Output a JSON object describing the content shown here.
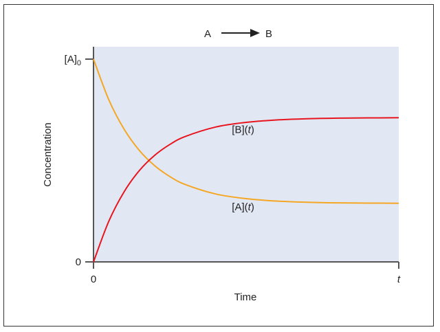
{
  "chart_data": {
    "type": "line",
    "title": {
      "reactant": "A",
      "product": "B"
    },
    "xlabel": "Time",
    "ylabel": "Concentration",
    "xlim": [
      0,
      1
    ],
    "ylim": [
      0,
      1
    ],
    "x_ticks": [
      {
        "value": 0,
        "label": "0"
      },
      {
        "value": 1,
        "label": "t"
      }
    ],
    "y_ticks": [
      {
        "value": 0,
        "label": "0"
      },
      {
        "value": 1,
        "label": "[A]",
        "subscript": "0"
      }
    ],
    "grid": false,
    "background": "#e1e8f4",
    "series": [
      {
        "name": "[A](t)",
        "color": "#f5a623",
        "x": [
          0,
          0.05,
          0.1,
          0.15,
          0.2,
          0.25,
          0.3,
          0.4,
          0.5,
          0.6,
          0.7,
          0.8,
          0.9,
          1.0
        ],
        "values": [
          1.0,
          0.8,
          0.655,
          0.55,
          0.475,
          0.421,
          0.382,
          0.335,
          0.312,
          0.3,
          0.294,
          0.291,
          0.29,
          0.289
        ]
      },
      {
        "name": "[B](t)",
        "color": "#e8141e",
        "x": [
          0,
          0.05,
          0.1,
          0.15,
          0.2,
          0.25,
          0.3,
          0.4,
          0.5,
          0.6,
          0.7,
          0.8,
          0.9,
          1.0
        ],
        "values": [
          0,
          0.2,
          0.345,
          0.45,
          0.525,
          0.579,
          0.618,
          0.665,
          0.688,
          0.7,
          0.706,
          0.709,
          0.71,
          0.711
        ]
      }
    ],
    "annotations": [
      {
        "text": "[B](",
        "italic": "t",
        "suffix": ")",
        "x": 0.49,
        "y": 0.635
      },
      {
        "text": "[A](",
        "italic": "t",
        "suffix": ")",
        "x": 0.49,
        "y": 0.255
      }
    ]
  },
  "colors": {
    "axis": "#555555",
    "border": "#333333",
    "text": "#222222"
  }
}
